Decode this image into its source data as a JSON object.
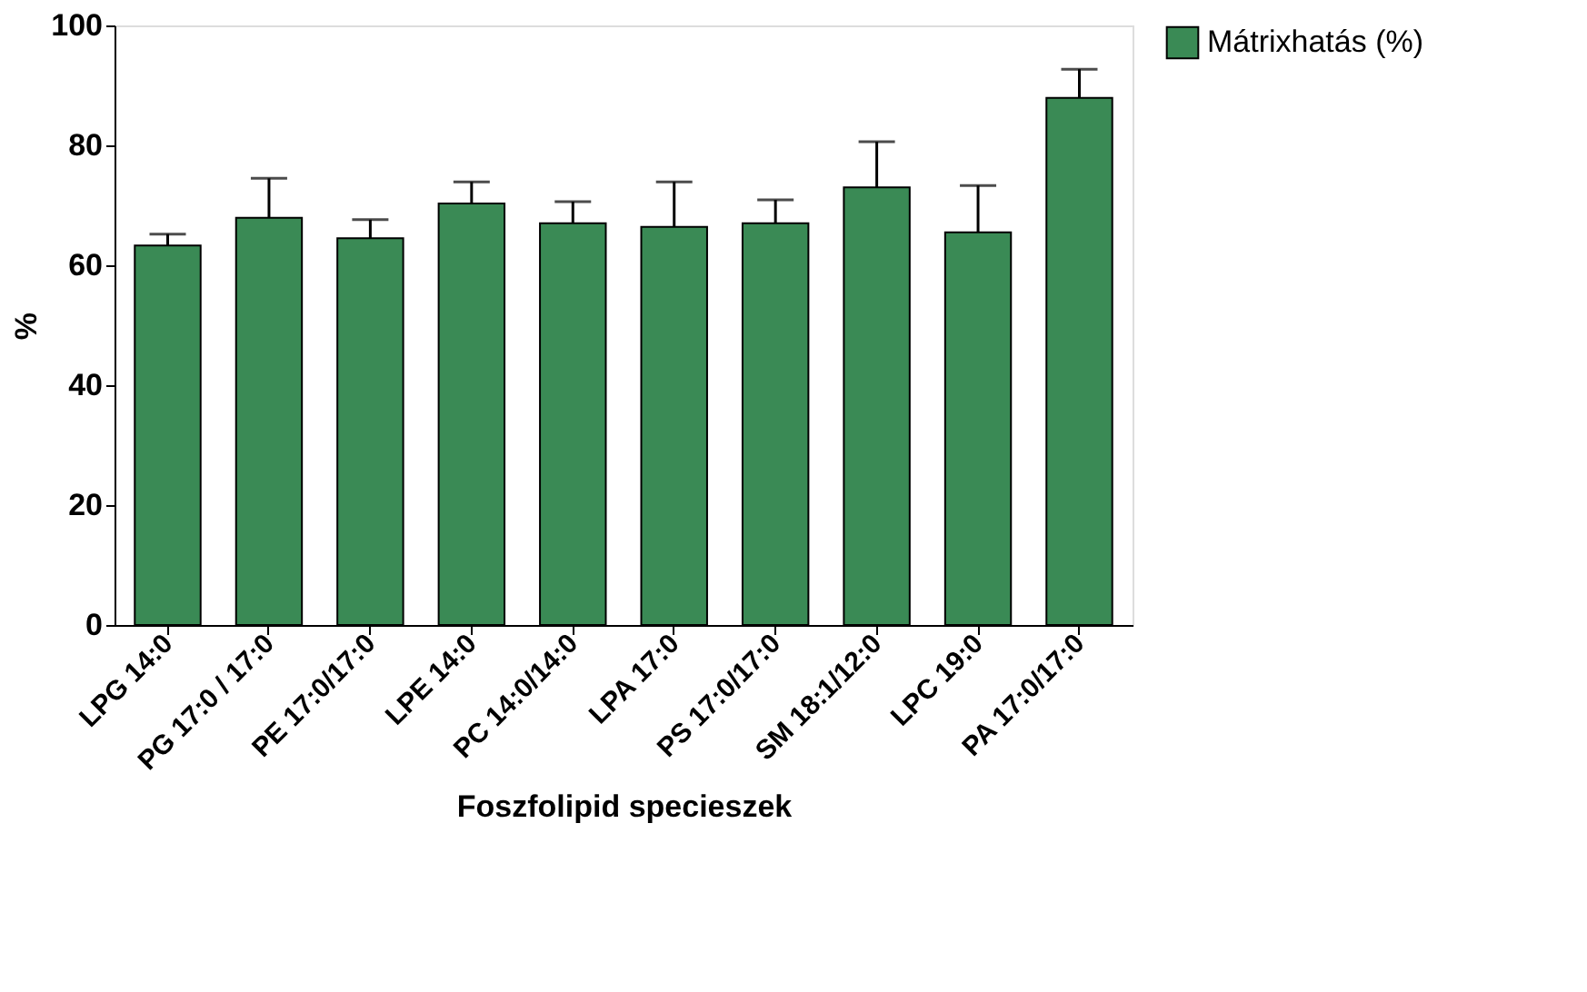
{
  "chart_data": {
    "type": "bar",
    "xlabel": "Foszfolipid specieszek",
    "ylabel": "%",
    "categories": [
      "LPG 14:0",
      "PG 17:0 / 17:0",
      "PE 17:0/17:0",
      "LPE 14:0",
      "PC 14:0/14:0",
      "LPA 17:0",
      "PS 17:0/17:0",
      "SM 18:1/12:0",
      "LPC 19:0",
      "PA 17:0/17:0"
    ],
    "series": [
      {
        "name": "Mátrixhatás (%)",
        "color": "#3a8a55",
        "values": [
          63.3,
          67.9,
          64.5,
          70.3,
          67,
          66.4,
          67,
          73,
          65.5,
          87.9
        ],
        "errors": [
          [
            63.3,
            65.2
          ],
          [
            67.9,
            74.5
          ],
          [
            64.5,
            67.6
          ],
          [
            70.3,
            73.9
          ],
          [
            67,
            70.6
          ],
          [
            66.4,
            73.9
          ],
          [
            67,
            70.9
          ],
          [
            73,
            80.6
          ],
          [
            65.5,
            73.3
          ],
          [
            87.9,
            92.7
          ]
        ]
      }
    ],
    "ylim": [
      0,
      100
    ],
    "yticks": [
      0,
      20,
      40,
      60,
      80,
      100
    ],
    "grid": false,
    "legend": "top right"
  }
}
